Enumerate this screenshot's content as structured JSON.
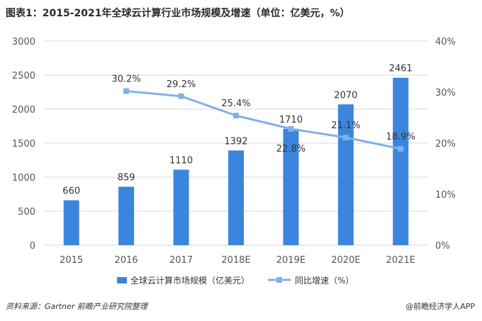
{
  "title": "图表1：2015-2021年全球云计算行业市场规模及增速（单位：亿美元，%）",
  "source": "资料来源：Gartner 前瞻产业研究院整理",
  "credit": "@前瞻经济学人APP",
  "colors": {
    "bar": "#3b86dc",
    "line": "#7fb0ea",
    "grid": "#d9d9d9"
  },
  "chart_data": {
    "type": "bar",
    "categories": [
      "2015",
      "2016",
      "2017",
      "2018E",
      "2019E",
      "2020E",
      "2021E"
    ],
    "series": [
      {
        "name": "全球云计算市场规模（亿美元）",
        "type": "bar",
        "axis": "left",
        "values": [
          660,
          859,
          1110,
          1392,
          1710,
          2070,
          2461
        ]
      },
      {
        "name": "同比增速（%）",
        "type": "line",
        "axis": "right",
        "values": [
          null,
          30.2,
          29.2,
          25.4,
          22.8,
          21.1,
          18.9
        ]
      }
    ],
    "y_left": {
      "min": 0,
      "max": 3000,
      "ticks": [
        0,
        500,
        1000,
        1500,
        2000,
        2500,
        3000
      ]
    },
    "y_right": {
      "min": 0,
      "max": 40,
      "ticks": [
        "0%",
        "10%",
        "20%",
        "30%",
        "40%"
      ]
    },
    "grid": true,
    "legend": "bottom"
  }
}
